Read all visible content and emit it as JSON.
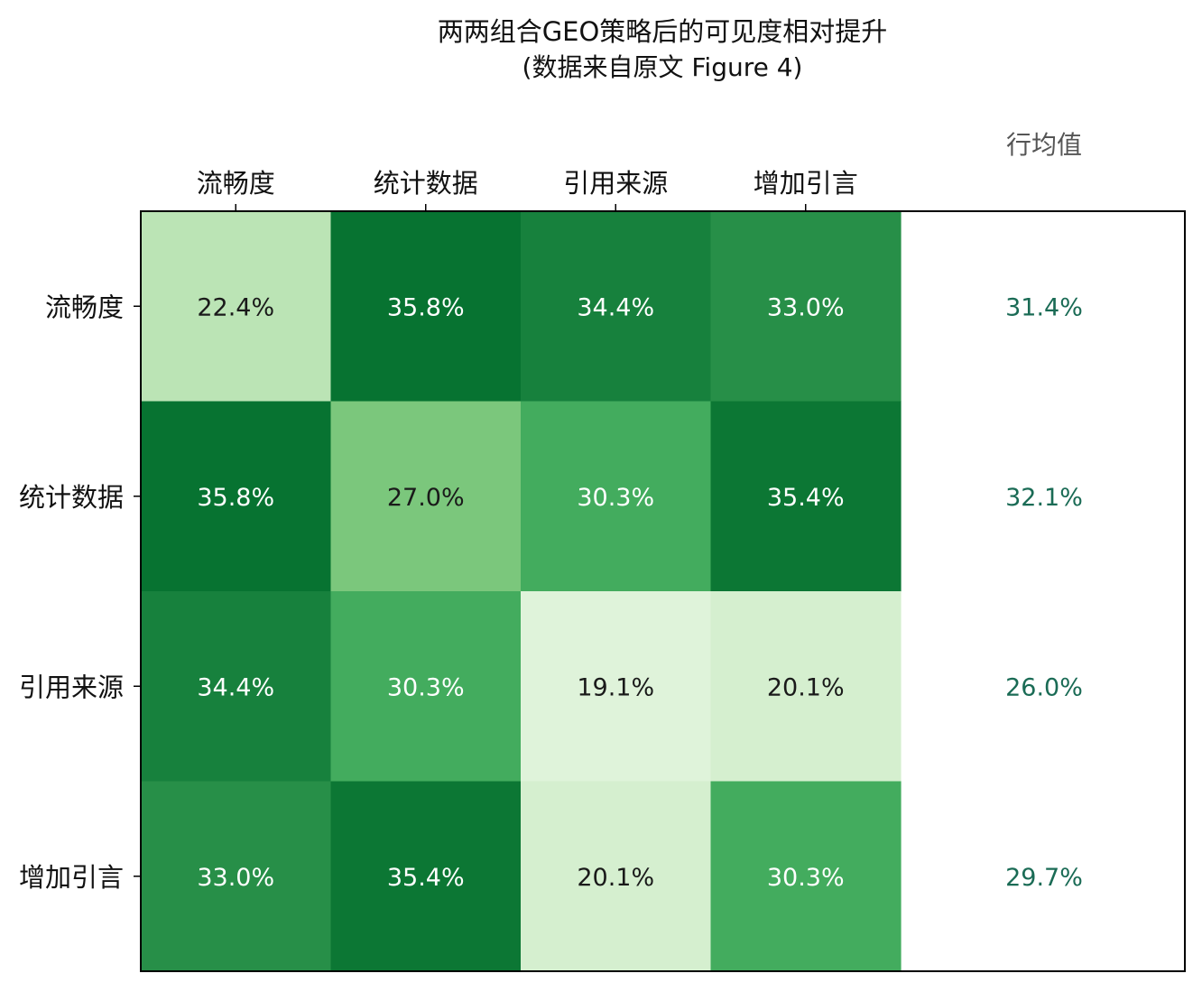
{
  "chart_data": {
    "type": "heatmap",
    "title": "两两组合GEO策略后的可见度相对提升",
    "subtitle": "(数据来自原文 Figure 4)",
    "row_labels": [
      "流畅度",
      "统计数据",
      "引用来源",
      "增加引言"
    ],
    "col_labels": [
      "流畅度",
      "统计数据",
      "引用来源",
      "增加引言"
    ],
    "values": [
      [
        22.4,
        35.8,
        34.4,
        33.0
      ],
      [
        35.8,
        27.0,
        30.3,
        35.4
      ],
      [
        34.4,
        30.3,
        19.1,
        20.1
      ],
      [
        33.0,
        35.4,
        20.1,
        30.3
      ]
    ],
    "value_labels": [
      [
        "22.4%",
        "35.8%",
        "34.4%",
        "33.0%"
      ],
      [
        "35.8%",
        "27.0%",
        "30.3%",
        "35.4%"
      ],
      [
        "34.4%",
        "30.3%",
        "19.1%",
        "20.1%"
      ],
      [
        "33.0%",
        "35.4%",
        "20.1%",
        "30.3%"
      ]
    ],
    "row_mean_header": "行均值",
    "row_means": [
      31.4,
      32.1,
      26.0,
      29.7
    ],
    "row_mean_labels": [
      "31.4%",
      "32.1%",
      "26.0%",
      "29.7%"
    ],
    "color_scale": "Greens",
    "vmin": 19.1,
    "vmax": 35.8,
    "colors": {
      "mean_text": "#1a6b55",
      "header_text": "#555555",
      "dark_label": "#1a1a1a",
      "light_label": "#ffffff"
    }
  }
}
